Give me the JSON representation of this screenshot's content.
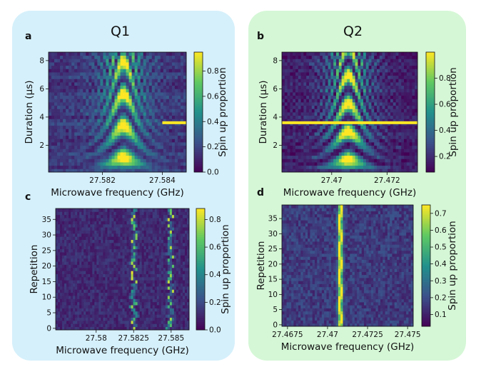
{
  "titles": {
    "q1": "Q1",
    "q2": "Q2"
  },
  "colormap": [
    "#440154",
    "#3b528b",
    "#21918c",
    "#5ec962",
    "#fde725"
  ],
  "chart_data": [
    {
      "panel": "a",
      "type": "heatmap",
      "qubit": "Q1",
      "xlabel": "Microwave frequency (GHz)",
      "ylabel": "Duration (µs)",
      "xlim": [
        27.5802,
        27.5848
      ],
      "ylim": [
        0.1,
        8.6
      ],
      "xticks": [
        27.582,
        27.584
      ],
      "xtick_labels": [
        "27.582",
        "27.584"
      ],
      "yticks": [
        2,
        4,
        6,
        8
      ],
      "ytick_labels": [
        "2",
        "4",
        "6",
        "8"
      ],
      "pattern": "rabi",
      "center": 27.5827,
      "base_rabi_mhz": 0.44,
      "peak": 0.92,
      "highlight_y": 3.6,
      "highlight_x_from": 27.584,
      "colorbar": {
        "label": "Spin up proportion",
        "range": [
          0,
          0.95
        ],
        "ticks": [
          0,
          0.2,
          0.4,
          0.6,
          0.8
        ],
        "tick_labels": [
          "0.0",
          "0.2",
          "0.4",
          "0.6",
          "0.8"
        ]
      }
    },
    {
      "panel": "b",
      "type": "heatmap",
      "qubit": "Q2",
      "xlabel": "Microwave frequency (GHz)",
      "ylabel": "Duration (µs)",
      "xlim": [
        27.4682,
        27.4731
      ],
      "ylim": [
        0.1,
        8.6
      ],
      "xticks": [
        27.47,
        27.472
      ],
      "xtick_labels": [
        "27.47",
        "27.472"
      ],
      "yticks": [
        2,
        4,
        6,
        8
      ],
      "ytick_labels": [
        "2",
        "4",
        "6",
        "8"
      ],
      "pattern": "rabi",
      "center": 27.4706,
      "base_rabi_mhz": 0.5,
      "peak": 0.98,
      "highlight_y": 3.6,
      "highlight_x_from": 27.4682,
      "colorbar": {
        "label": "Spin up proportion",
        "range": [
          0.08,
          1.0
        ],
        "ticks": [
          0.2,
          0.4,
          0.6,
          0.8
        ],
        "tick_labels": [
          "0.2",
          "0.4",
          "0.6",
          "0.8"
        ]
      }
    },
    {
      "panel": "c",
      "type": "heatmap",
      "qubit": "Q1",
      "xlabel": "Microwave frequency (GHz)",
      "ylabel": "Repetition",
      "xlim": [
        27.5773,
        27.5862
      ],
      "ylim": [
        -0.5,
        38.5
      ],
      "xticks": [
        27.58,
        27.5825,
        27.585
      ],
      "xtick_labels": [
        "27.58",
        "27.5825",
        "27.585"
      ],
      "yticks": [
        0,
        5,
        10,
        15,
        20,
        25,
        30,
        35
      ],
      "ytick_labels": [
        "0",
        "5",
        "10",
        "15",
        "20",
        "25",
        "30",
        "35"
      ],
      "pattern": "jump-lines",
      "line_a": [
        27.58253,
        27.58265,
        27.58242,
        27.58248,
        27.58271,
        27.58259,
        27.58244,
        27.58236,
        27.58262,
        27.58255,
        27.58231,
        27.58246,
        27.58249,
        27.5826,
        27.58253,
        27.58266,
        27.58242,
        27.58238,
        27.58241,
        27.58262,
        27.58257,
        27.58237,
        27.58248,
        27.58252,
        27.58261,
        27.58244,
        27.58258,
        27.5825,
        27.58239,
        27.58264,
        27.58264,
        27.58271,
        27.58247,
        27.58259,
        27.58246,
        27.58236,
        27.58255,
        27.5825,
        27.58264
      ],
      "line_b": [
        27.58477,
        27.58493,
        27.58489,
        27.58502,
        27.58488,
        27.58501,
        27.58508,
        27.58477,
        27.58504,
        27.58486,
        27.58487,
        27.58495,
        27.58509,
        27.58488,
        27.58504,
        27.58483,
        27.58491,
        27.58501,
        27.58491,
        27.58495,
        27.58507,
        27.58485,
        27.5849,
        27.58509,
        27.58482,
        27.58498,
        27.58495,
        27.58495,
        27.58487,
        27.58491,
        27.58506,
        27.58497,
        27.58507,
        27.58488,
        27.58495,
        27.58484,
        27.5851,
        27.58495,
        27.58494
      ],
      "colorbar": {
        "label": "Spin up proportion",
        "range": [
          0,
          0.88
        ],
        "ticks": [
          0,
          0.2,
          0.4,
          0.6,
          0.8
        ],
        "tick_labels": [
          "0.0",
          "0.2",
          "0.4",
          "0.6",
          "0.8"
        ]
      }
    },
    {
      "panel": "d",
      "type": "heatmap",
      "qubit": "Q2",
      "xlabel": "Microwave frequency (GHz)",
      "ylabel": "Repetition",
      "xlim": [
        27.46715,
        27.47535
      ],
      "ylim": [
        -0.5,
        39.5
      ],
      "xticks": [
        27.4675,
        27.47,
        27.4725,
        27.475
      ],
      "xtick_labels": [
        "27.4675",
        "27.47",
        "27.4725",
        "27.475"
      ],
      "yticks": [
        0,
        5,
        10,
        15,
        20,
        25,
        30,
        35
      ],
      "ytick_labels": [
        "0",
        "5",
        "10",
        "15",
        "20",
        "25",
        "30",
        "35"
      ],
      "pattern": "stable-line",
      "center_line": 27.4708,
      "peak": 0.72,
      "colorbar": {
        "label": "Spin up proportion",
        "range": [
          0.03,
          0.75
        ],
        "ticks": [
          0.1,
          0.2,
          0.3,
          0.4,
          0.5,
          0.6,
          0.7
        ],
        "tick_labels": [
          "0.1",
          "0.2",
          "0.3",
          "0.4",
          "0.5",
          "0.6",
          "0.7"
        ]
      }
    }
  ]
}
